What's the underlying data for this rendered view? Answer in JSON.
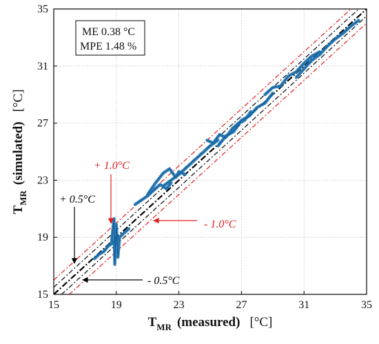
{
  "colors": {
    "series": "#1f77b4",
    "identity": "#000000",
    "band_half": "#000000",
    "band_one": "#e41a1c"
  },
  "stats_box": {
    "line1": "ME 0.38 °C",
    "line2": "MPE 1.48 %"
  },
  "annotations": {
    "plus_one": "+ 1.0°C",
    "minus_one": "- 1.0°C",
    "plus_half": "+ 0.5°C",
    "minus_half": "- 0.5°C"
  },
  "chart_data": {
    "type": "scatter",
    "title": "",
    "xlabel": {
      "main": "T",
      "sub": "MR",
      "qualifier": "(measured)",
      "unit": "[°C]"
    },
    "ylabel": {
      "main": "T",
      "sub": "MR",
      "qualifier": "(simulated)",
      "unit": "[°C]"
    },
    "xlim": [
      15,
      35
    ],
    "ylim": [
      15,
      35
    ],
    "xticks": [
      "15",
      "19",
      "23",
      "27",
      "31",
      "35"
    ],
    "yticks": [
      "15",
      "19",
      "23",
      "27",
      "31",
      "35"
    ],
    "grid": true,
    "reference_lines": [
      {
        "name": "identity",
        "offset": 0,
        "style": "dash-dot",
        "color": "#000000"
      },
      {
        "name": "+0.5",
        "offset": 0.5,
        "style": "dash-dot",
        "color": "#000000"
      },
      {
        "name": "-0.5",
        "offset": -0.5,
        "style": "dash-dot",
        "color": "#000000"
      },
      {
        "name": "+1.0",
        "offset": 1.0,
        "style": "dash-dot",
        "color": "#e41a1c"
      },
      {
        "name": "-1.0",
        "offset": -1.0,
        "style": "dash-dot",
        "color": "#e41a1c"
      }
    ],
    "series": [
      {
        "color": "#1f77b4",
        "segments": [
          [
            [
              17.6,
              17.5
            ],
            [
              17.9,
              17.8
            ],
            [
              18.2,
              18.0
            ],
            [
              18.5,
              18.4
            ],
            [
              18.8,
              18.6
            ],
            [
              19.1,
              18.9
            ],
            [
              19.4,
              19.2
            ],
            [
              19.8,
              19.6
            ]
          ],
          [
            [
              18.7,
              18.7
            ],
            [
              18.85,
              20.3
            ],
            [
              18.9,
              17.1
            ],
            [
              19.0,
              19.9
            ],
            [
              19.1,
              17.6
            ],
            [
              19.2,
              18.9
            ]
          ],
          [
            [
              20.2,
              21.3
            ],
            [
              20.6,
              21.6
            ],
            [
              21.0,
              21.9
            ],
            [
              21.4,
              22.3
            ],
            [
              21.8,
              22.7
            ],
            [
              22.2,
              22.4
            ],
            [
              22.5,
              22.8
            ]
          ],
          [
            [
              21.0,
              22.0
            ],
            [
              21.5,
              22.8
            ],
            [
              22.0,
              23.5
            ],
            [
              22.4,
              23.8
            ],
            [
              22.8,
              23.2
            ],
            [
              23.0,
              23.6
            ],
            [
              23.4,
              23.4
            ]
          ],
          [
            [
              22.0,
              22.6
            ],
            [
              22.5,
              23.0
            ],
            [
              23.0,
              23.4
            ],
            [
              23.5,
              23.9
            ],
            [
              24.0,
              24.4
            ],
            [
              24.5,
              24.9
            ],
            [
              25.0,
              25.4
            ],
            [
              25.5,
              25.8
            ]
          ],
          [
            [
              24.8,
              25.8
            ],
            [
              25.2,
              25.6
            ],
            [
              25.6,
              26.2
            ],
            [
              26.0,
              26.0
            ],
            [
              26.4,
              26.6
            ],
            [
              26.8,
              27.0
            ],
            [
              27.2,
              27.2
            ],
            [
              27.6,
              27.8
            ]
          ],
          [
            [
              25.5,
              25.4
            ],
            [
              26.0,
              26.1
            ],
            [
              26.5,
              26.4
            ],
            [
              27.0,
              27.2
            ],
            [
              27.5,
              27.5
            ],
            [
              28.0,
              28.1
            ],
            [
              28.5,
              28.4
            ],
            [
              29.0,
              29.1
            ]
          ],
          [
            [
              28.5,
              29.0
            ],
            [
              29.0,
              29.5
            ],
            [
              29.5,
              29.6
            ],
            [
              30.0,
              30.3
            ],
            [
              30.5,
              30.6
            ],
            [
              31.0,
              31.2
            ],
            [
              31.5,
              31.7
            ],
            [
              32.0,
              32.0
            ]
          ],
          [
            [
              30.5,
              30.2
            ],
            [
              31.0,
              30.8
            ],
            [
              31.5,
              31.4
            ],
            [
              32.0,
              31.8
            ],
            [
              32.5,
              32.4
            ],
            [
              33.0,
              32.9
            ],
            [
              33.5,
              33.3
            ],
            [
              34.0,
              33.8
            ],
            [
              34.5,
              34.2
            ]
          ]
        ]
      }
    ]
  }
}
